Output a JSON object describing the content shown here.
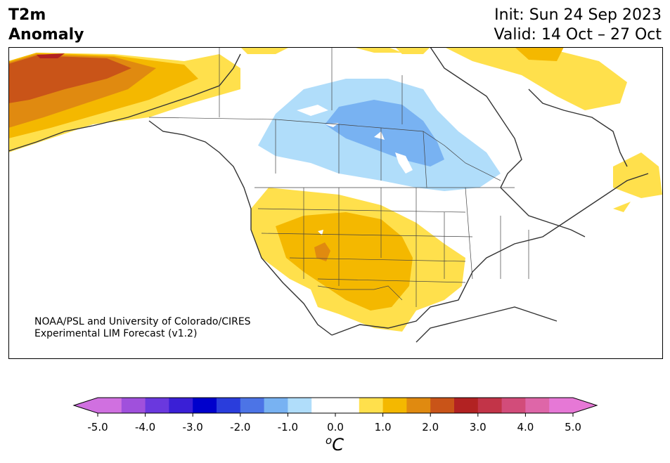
{
  "title": {
    "variable": "T2m",
    "kind": "Anomaly"
  },
  "dates": {
    "init": "Init: Sun 24 Sep 2023",
    "valid": "Valid: 14 Oct – 27 Oct"
  },
  "credit": {
    "line1": "NOAA/PSL and University of Colorado/CIRES",
    "line2": "Experimental LIM Forecast (v1.2)"
  },
  "colorbar": {
    "unit_superscript": "o",
    "unit": "C",
    "ticks": [
      "-5.0",
      "-4.0",
      "-3.0",
      "-2.0",
      "-1.0",
      "0.0",
      "1.0",
      "2.0",
      "3.0",
      "4.0",
      "5.0"
    ],
    "bins": [
      "#d070e0",
      "#a050dc",
      "#6a38de",
      "#3a1fd6",
      "#0000cc",
      "#2a3ddc",
      "#4c74e6",
      "#78b2f2",
      "#b0ddfa",
      "#ffffff",
      "#ffffff",
      "#ffe04c",
      "#f4b800",
      "#e08a10",
      "#c95418",
      "#b22222",
      "#c23448",
      "#d24c7a",
      "#de66a8",
      "#e678d6"
    ],
    "extend_low": "#d070e0",
    "extend_high": "#e678d6"
  },
  "map_colors": {
    "land_outline": "#333333",
    "anomaly_1": "#ffe04c",
    "anomaly_1_5": "#f4b800",
    "anomaly_2": "#e08a10",
    "anomaly_2_5": "#c95418",
    "anomaly_3": "#b22222",
    "neg_1": "#b0ddfa",
    "neg_1_5": "#78b2f2"
  }
}
